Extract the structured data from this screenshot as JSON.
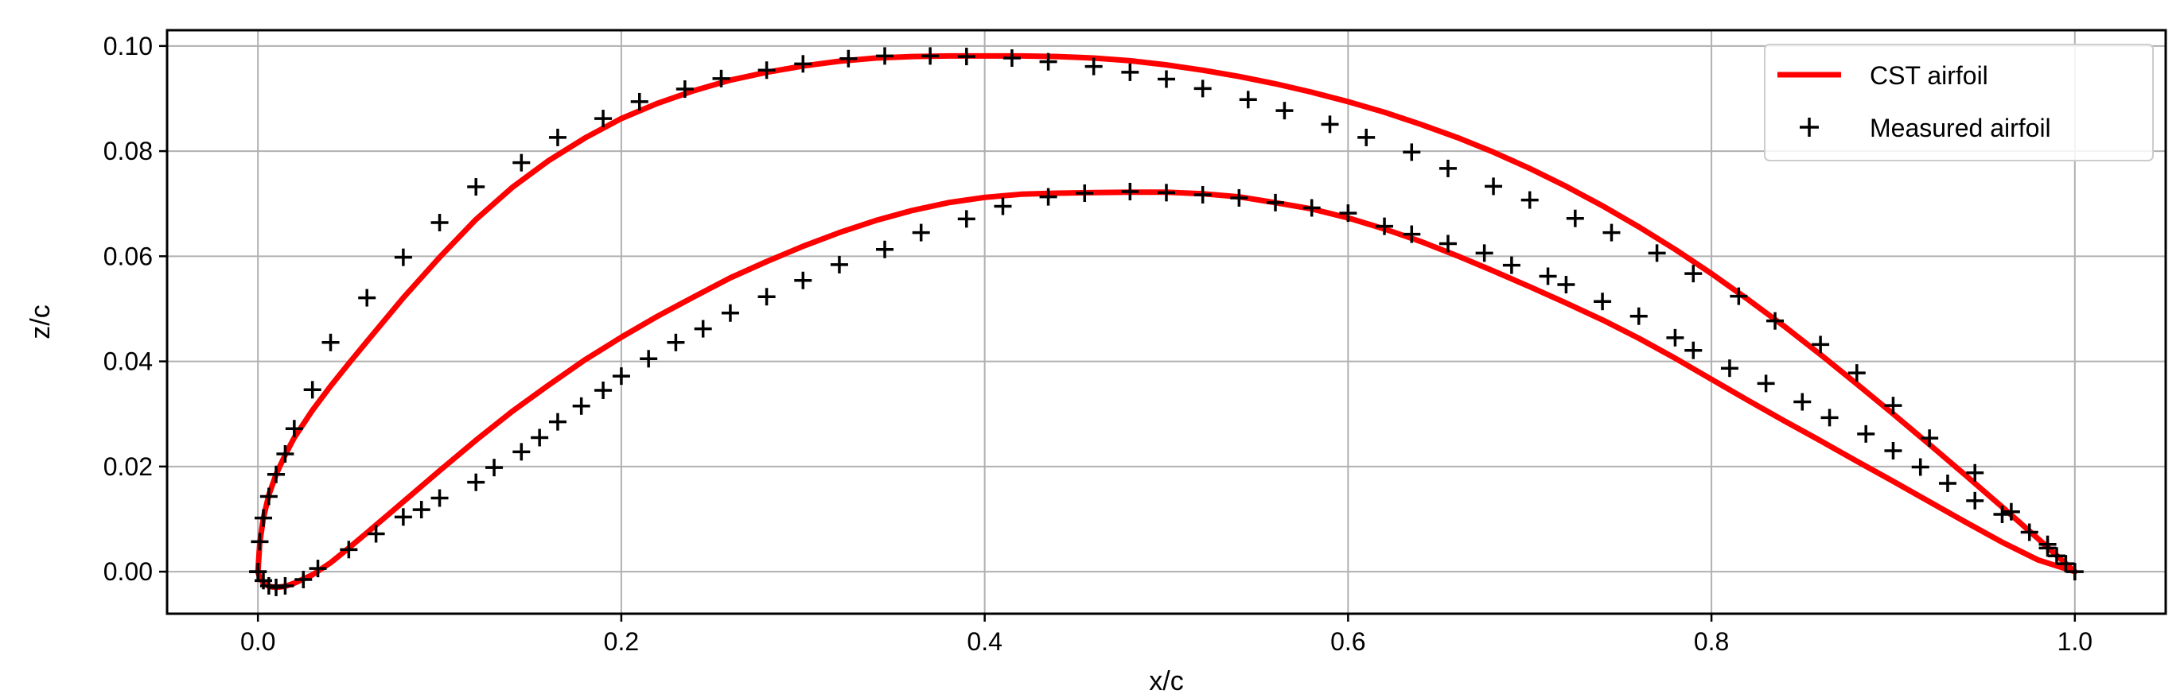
{
  "chart_data": {
    "type": "line",
    "title": "",
    "xlabel": "x/c",
    "ylabel": "z/c",
    "xlim": [
      -0.05,
      1.05
    ],
    "ylim": [
      -0.008,
      0.103
    ],
    "xticks": [
      0.0,
      0.2,
      0.4,
      0.6,
      0.8,
      1.0
    ],
    "xtick_labels": [
      "0.0",
      "0.2",
      "0.4",
      "0.6",
      "0.8",
      "1.0"
    ],
    "yticks": [
      0.0,
      0.02,
      0.04,
      0.06,
      0.08,
      0.1
    ],
    "ytick_labels": [
      "0.00",
      "0.02",
      "0.04",
      "0.06",
      "0.08",
      "0.10"
    ],
    "grid": true,
    "legend": {
      "placement": "top-right",
      "entries": [
        "CST airfoil",
        "Measured airfoil"
      ]
    },
    "series": [
      {
        "name": "CST airfoil",
        "kind": "line",
        "color": "#ff0000",
        "x": [
          1.0,
          0.98,
          0.96,
          0.94,
          0.92,
          0.9,
          0.88,
          0.86,
          0.84,
          0.82,
          0.8,
          0.78,
          0.76,
          0.74,
          0.72,
          0.7,
          0.68,
          0.66,
          0.64,
          0.62,
          0.6,
          0.58,
          0.56,
          0.54,
          0.52,
          0.5,
          0.48,
          0.46,
          0.44,
          0.42,
          0.4,
          0.38,
          0.36,
          0.34,
          0.32,
          0.3,
          0.28,
          0.26,
          0.24,
          0.22,
          0.2,
          0.18,
          0.16,
          0.14,
          0.12,
          0.1,
          0.08,
          0.06,
          0.05,
          0.04,
          0.03,
          0.02,
          0.015,
          0.01,
          0.006,
          0.003,
          0.001,
          0.0,
          0.001,
          0.003,
          0.006,
          0.01,
          0.015,
          0.02,
          0.03,
          0.04,
          0.05,
          0.06,
          0.08,
          0.1,
          0.12,
          0.14,
          0.16,
          0.18,
          0.2,
          0.22,
          0.24,
          0.26,
          0.28,
          0.3,
          0.32,
          0.34,
          0.36,
          0.38,
          0.4,
          0.42,
          0.44,
          0.46,
          0.48,
          0.5,
          0.52,
          0.54,
          0.56,
          0.58,
          0.6,
          0.62,
          0.64,
          0.66,
          0.68,
          0.7,
          0.72,
          0.74,
          0.76,
          0.78,
          0.8,
          0.82,
          0.84,
          0.86,
          0.88,
          0.9,
          0.92,
          0.94,
          0.96,
          0.98,
          1.0
        ],
        "y": [
          0.0,
          0.0062,
          0.0123,
          0.0183,
          0.0242,
          0.03,
          0.0357,
          0.0413,
          0.0467,
          0.0518,
          0.0567,
          0.0613,
          0.0656,
          0.0696,
          0.0733,
          0.0767,
          0.0798,
          0.0826,
          0.0851,
          0.0874,
          0.0894,
          0.0912,
          0.0928,
          0.0942,
          0.0954,
          0.0964,
          0.0972,
          0.0977,
          0.098,
          0.0981,
          0.0981,
          0.0981,
          0.098,
          0.0977,
          0.0971,
          0.0962,
          0.095,
          0.0935,
          0.0915,
          0.0891,
          0.0862,
          0.0825,
          0.0782,
          0.0731,
          0.067,
          0.0598,
          0.0521,
          0.0438,
          0.0396,
          0.0353,
          0.0307,
          0.0255,
          0.0222,
          0.0185,
          0.0146,
          0.0102,
          0.0055,
          0.0,
          -0.0012,
          -0.0022,
          -0.0028,
          -0.003,
          -0.0028,
          -0.0022,
          -0.0006,
          0.0017,
          0.0045,
          0.0074,
          0.0133,
          0.0192,
          0.025,
          0.0305,
          0.0355,
          0.0403,
          0.0446,
          0.0486,
          0.0523,
          0.0559,
          0.059,
          0.0619,
          0.0645,
          0.0668,
          0.0687,
          0.0702,
          0.0712,
          0.0718,
          0.072,
          0.0721,
          0.0722,
          0.0722,
          0.0719,
          0.0713,
          0.0702,
          0.069,
          0.0673,
          0.0652,
          0.0628,
          0.0601,
          0.0572,
          0.0542,
          0.0511,
          0.0479,
          0.0444,
          0.0406,
          0.0366,
          0.0326,
          0.0287,
          0.0249,
          0.021,
          0.0172,
          0.0133,
          0.0094,
          0.0056,
          0.0022,
          0.0
        ]
      },
      {
        "name": "Measured airfoil",
        "kind": "markers",
        "marker": "+",
        "color": "#000000",
        "x": [
          0.0,
          0.001,
          0.003,
          0.006,
          0.01,
          0.015,
          0.02,
          0.03,
          0.04,
          0.06,
          0.08,
          0.1,
          0.12,
          0.145,
          0.165,
          0.19,
          0.21,
          0.235,
          0.255,
          0.28,
          0.3,
          0.325,
          0.345,
          0.37,
          0.39,
          0.415,
          0.435,
          0.46,
          0.48,
          0.5,
          0.52,
          0.545,
          0.565,
          0.59,
          0.61,
          0.635,
          0.655,
          0.68,
          0.7,
          0.725,
          0.745,
          0.77,
          0.79,
          0.815,
          0.835,
          0.86,
          0.88,
          0.9,
          0.92,
          0.945,
          0.965,
          0.985,
          0.99,
          1.0,
          0.0,
          0.003,
          0.006,
          0.01,
          0.015,
          0.025,
          0.033,
          0.05,
          0.065,
          0.08,
          0.09,
          0.1,
          0.12,
          0.13,
          0.145,
          0.155,
          0.165,
          0.178,
          0.19,
          0.2,
          0.215,
          0.23,
          0.245,
          0.26,
          0.28,
          0.3,
          0.32,
          0.345,
          0.365,
          0.39,
          0.41,
          0.435,
          0.455,
          0.48,
          0.5,
          0.52,
          0.54,
          0.56,
          0.58,
          0.6,
          0.62,
          0.635,
          0.655,
          0.675,
          0.69,
          0.71,
          0.72,
          0.74,
          0.76,
          0.78,
          0.79,
          0.81,
          0.83,
          0.85,
          0.865,
          0.885,
          0.9,
          0.915,
          0.93,
          0.945,
          0.96,
          0.975,
          0.985,
          0.995
        ],
        "y": [
          0.0,
          0.0057,
          0.0102,
          0.0143,
          0.0185,
          0.0224,
          0.0272,
          0.0346,
          0.0436,
          0.0521,
          0.0598,
          0.0664,
          0.0732,
          0.0778,
          0.0826,
          0.0862,
          0.0894,
          0.0918,
          0.0938,
          0.0954,
          0.0966,
          0.0976,
          0.0981,
          0.0981,
          0.098,
          0.0977,
          0.097,
          0.0961,
          0.095,
          0.0937,
          0.0919,
          0.0898,
          0.0877,
          0.0851,
          0.0826,
          0.0798,
          0.0767,
          0.0733,
          0.0707,
          0.0672,
          0.0645,
          0.0606,
          0.0567,
          0.0524,
          0.0477,
          0.0432,
          0.0378,
          0.0316,
          0.0254,
          0.0188,
          0.0114,
          0.0052,
          0.003,
          0.0,
          0.0,
          -0.0017,
          -0.0027,
          -0.003,
          -0.0027,
          -0.0015,
          0.0006,
          0.0042,
          0.0072,
          0.0104,
          0.0118,
          0.014,
          0.017,
          0.0198,
          0.0228,
          0.0255,
          0.0285,
          0.0315,
          0.0345,
          0.0372,
          0.0405,
          0.0436,
          0.0462,
          0.0492,
          0.0523,
          0.0554,
          0.0584,
          0.0613,
          0.0645,
          0.0671,
          0.0695,
          0.0713,
          0.072,
          0.0723,
          0.0721,
          0.0717,
          0.0711,
          0.0702,
          0.0692,
          0.0682,
          0.0657,
          0.0642,
          0.0624,
          0.0606,
          0.0583,
          0.0562,
          0.0546,
          0.0514,
          0.0486,
          0.0445,
          0.0421,
          0.0387,
          0.0358,
          0.0323,
          0.0293,
          0.0262,
          0.023,
          0.0199,
          0.0168,
          0.0135,
          0.0109,
          0.0075,
          0.0045,
          0.0015
        ]
      }
    ]
  }
}
